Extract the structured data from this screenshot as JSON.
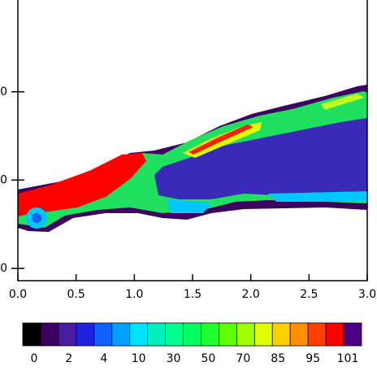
{
  "chart_data": {
    "type": "contour",
    "xlim": [
      0,
      3
    ],
    "xticks": [
      {
        "value": 0,
        "label": "0.0"
      },
      {
        "value": 0.5,
        "label": "0.5"
      },
      {
        "value": 1,
        "label": "1.0"
      },
      {
        "value": 1.5,
        "label": "1.5"
      },
      {
        "value": 2,
        "label": "2.0"
      },
      {
        "value": 2.5,
        "label": "2.5"
      },
      {
        "value": 3,
        "label": "3.0"
      }
    ],
    "ylim": [
      -1.4,
      30.4
    ],
    "yticks": [
      {
        "value": 20,
        "label": "0"
      },
      {
        "value": 10,
        "label": "0"
      },
      {
        "value": 0,
        "label": "0"
      }
    ],
    "colorbar": {
      "colors": [
        "#000000",
        "#3b0060",
        "#4a1aa0",
        "#2020e0",
        "#1060ff",
        "#00a0ff",
        "#00e0ff",
        "#00f0c0",
        "#00ff90",
        "#00ff60",
        "#20ff30",
        "#60ff00",
        "#a0ff00",
        "#e0ff00",
        "#ffd000",
        "#ff9000",
        "#ff4000",
        "#ff0000",
        "#4b0082"
      ],
      "labels": [
        "0",
        "2",
        "4",
        "10",
        "30",
        "50",
        "70",
        "85",
        "95",
        "101"
      ]
    }
  }
}
